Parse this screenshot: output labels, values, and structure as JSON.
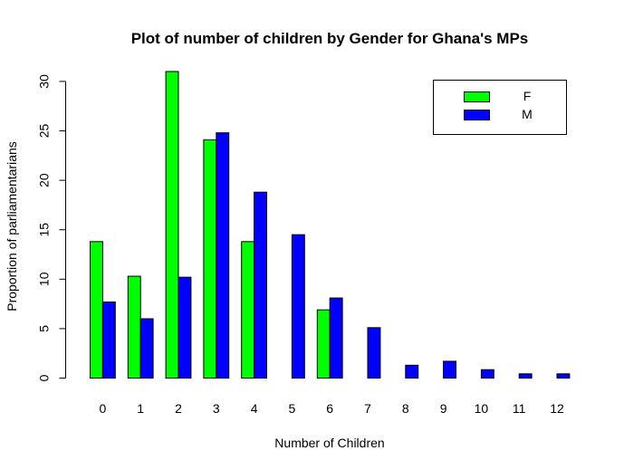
{
  "chart_data": {
    "type": "bar",
    "title": "Plot of number of children by Gender for Ghana's MPs",
    "xlabel": "Number of Children",
    "ylabel": "Proportion of parliamentarians",
    "categories": [
      "0",
      "1",
      "2",
      "3",
      "4",
      "5",
      "6",
      "7",
      "8",
      "9",
      "10",
      "11",
      "12"
    ],
    "series": [
      {
        "name": "F",
        "color": "#00ff00",
        "values": [
          13.8,
          10.3,
          31.0,
          24.1,
          13.8,
          0,
          6.9,
          0,
          0,
          0,
          0,
          0,
          0
        ]
      },
      {
        "name": "M",
        "color": "#0000ff",
        "values": [
          7.7,
          6.0,
          10.2,
          24.8,
          18.8,
          14.5,
          8.1,
          5.1,
          1.3,
          1.7,
          0.85,
          0.43,
          0.43
        ]
      }
    ],
    "ylim": [
      0,
      31
    ],
    "yticks": [
      "0",
      "5",
      "10",
      "15",
      "20",
      "25",
      "30"
    ],
    "grid": false,
    "legend_position": "top-right"
  }
}
